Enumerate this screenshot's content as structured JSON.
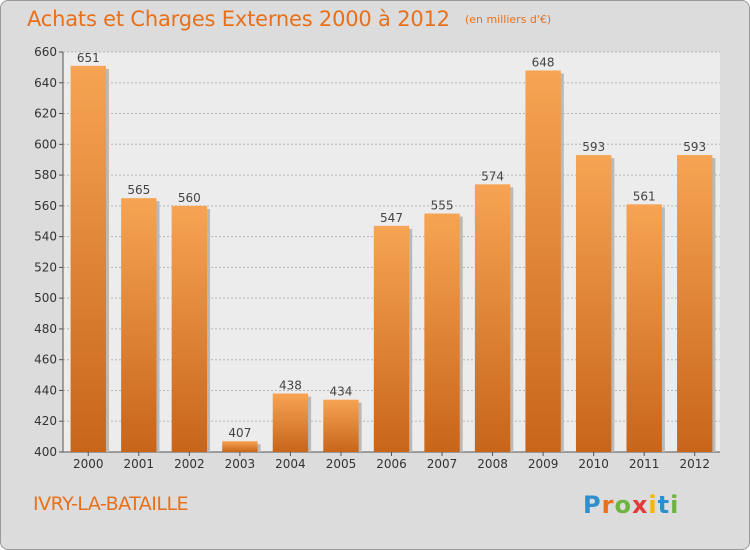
{
  "header": {
    "title": "Achats et Charges Externes 2000 à 2012",
    "unit": "(en milliers d'€)"
  },
  "footer": {
    "commune": "IVRY-LA-BATAILLE",
    "logo": {
      "letters": [
        "P",
        "r",
        "o",
        "x",
        "i",
        "t",
        "i"
      ],
      "colors": [
        "#2e8fcf",
        "#e8701a",
        "#6db33f",
        "#e03a3a",
        "#f5b800",
        "#2e8fcf",
        "#6db33f"
      ]
    }
  },
  "colors": {
    "bar_light": "#f6a453",
    "bar_dark": "#c8651a",
    "accent": "#e8701a",
    "background": "#dcdcdc",
    "plot_background": "#ececec"
  },
  "chart_data": {
    "type": "bar",
    "title": "Achats et Charges Externes 2000 à 2012",
    "categories": [
      "2000",
      "2001",
      "2002",
      "2003",
      "2004",
      "2005",
      "2006",
      "2007",
      "2008",
      "2009",
      "2010",
      "2011",
      "2012"
    ],
    "values": [
      651,
      565,
      560,
      407,
      438,
      434,
      547,
      555,
      574,
      648,
      593,
      561,
      593
    ],
    "ylim": [
      400,
      660
    ],
    "yticks": [
      400,
      420,
      440,
      460,
      480,
      500,
      520,
      540,
      560,
      580,
      600,
      620,
      640,
      660
    ],
    "grid": true
  }
}
